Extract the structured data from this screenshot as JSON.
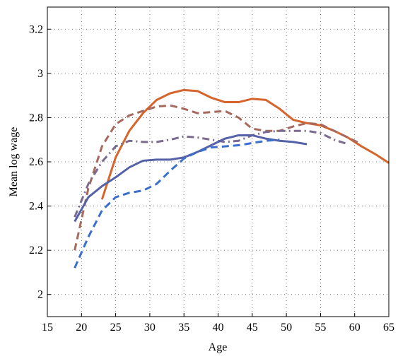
{
  "chart_data": {
    "type": "line",
    "x_label": "Age",
    "y_label": "Mean log wage",
    "x": [
      19,
      21,
      23,
      25,
      27,
      29,
      31,
      33,
      35,
      37,
      39,
      41,
      43,
      45,
      47,
      49,
      51,
      53,
      55,
      57,
      59,
      61,
      63,
      65
    ],
    "series": [
      {
        "color": "#d5652c",
        "style": "solid",
        "values": [
          null,
          null,
          2.43,
          2.62,
          2.74,
          2.82,
          2.88,
          2.91,
          2.925,
          2.92,
          2.89,
          2.87,
          2.87,
          2.885,
          2.88,
          2.84,
          2.79,
          2.775,
          2.765,
          2.74,
          2.71,
          2.67,
          2.635,
          2.595
        ]
      },
      {
        "color": "#a5695e",
        "style": "dashed",
        "values": [
          2.2,
          2.48,
          2.67,
          2.77,
          2.81,
          2.83,
          2.85,
          2.855,
          2.84,
          2.82,
          2.825,
          2.83,
          2.8,
          2.75,
          2.74,
          2.74,
          2.76,
          2.775,
          2.77,
          2.74,
          2.71,
          2.68,
          null,
          null
        ]
      },
      {
        "color": "#7a6b8f",
        "style": "dashdot",
        "values": [
          2.35,
          2.5,
          2.6,
          2.67,
          2.695,
          2.69,
          2.69,
          2.7,
          2.715,
          2.71,
          2.7,
          2.69,
          2.695,
          2.72,
          2.735,
          2.74,
          2.74,
          2.74,
          2.73,
          2.7,
          2.68,
          null,
          null,
          null
        ]
      },
      {
        "color": "#5662a8",
        "style": "solid",
        "values": [
          2.33,
          2.44,
          2.49,
          2.53,
          2.575,
          2.605,
          2.61,
          2.61,
          2.62,
          2.645,
          2.675,
          2.705,
          2.72,
          2.72,
          2.705,
          2.695,
          2.69,
          2.68,
          null,
          null,
          null,
          null,
          null,
          null
        ]
      },
      {
        "color": "#3b6fcc",
        "style": "dashed",
        "values": [
          2.12,
          2.26,
          2.38,
          2.44,
          2.46,
          2.47,
          2.5,
          2.56,
          2.615,
          2.645,
          2.665,
          2.67,
          2.675,
          2.685,
          2.695,
          2.7,
          null,
          null,
          null,
          null,
          null,
          null,
          null,
          null
        ]
      }
    ],
    "xlim": [
      15,
      65
    ],
    "xticks": [
      15,
      20,
      25,
      30,
      35,
      40,
      45,
      50,
      55,
      60,
      65
    ],
    "ylim": [
      1.9,
      3.3
    ],
    "yticks": [
      2,
      2.2,
      2.4,
      2.6,
      2.8,
      3,
      3.2
    ],
    "grid": true
  }
}
